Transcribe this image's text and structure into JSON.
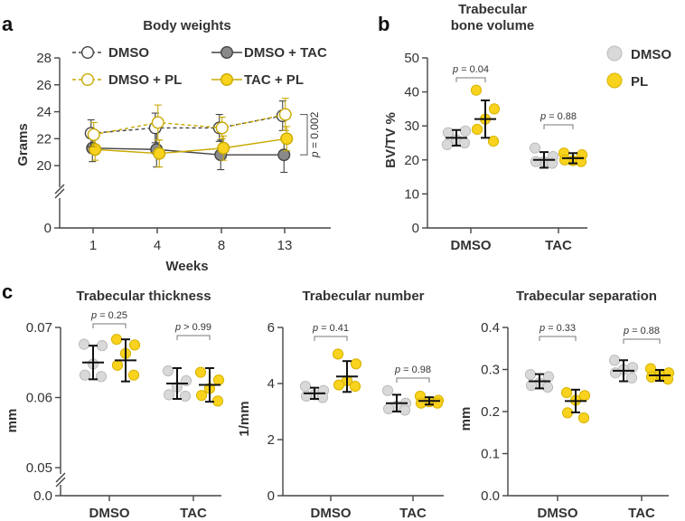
{
  "panels": {
    "a": "a",
    "b": "b",
    "c": "c"
  },
  "colors": {
    "dmso": "#d9d9d9",
    "pl": "#f8d21c",
    "tac_line": "#333333",
    "tac_pl": "#c9a900",
    "axis": "#444444"
  },
  "chart_data": [
    {
      "id": "body_weights",
      "type": "line",
      "title": "Body weights",
      "xlabel": "Weeks",
      "ylabel": "Grams",
      "categories": [
        "1",
        "4",
        "8",
        "13"
      ],
      "yticks": [
        "20",
        "22",
        "24",
        "26",
        "28"
      ],
      "ybreak_label": "0",
      "ylim": [
        19,
        28
      ],
      "series": [
        {
          "name": "DMSO",
          "values": [
            22.4,
            22.8,
            22.8,
            23.7
          ],
          "err": [
            1.0,
            1.1,
            1.0,
            1.1
          ],
          "style": "dashed",
          "marker": "open"
        },
        {
          "name": "DMSO + TAC",
          "values": [
            21.3,
            21.2,
            20.8,
            20.8
          ],
          "err": [
            1.0,
            1.3,
            1.1,
            1.3
          ],
          "style": "solid",
          "marker": "gray"
        },
        {
          "name": "DMSO + PL",
          "values": [
            22.3,
            23.2,
            22.8,
            23.8
          ],
          "err": [
            0.9,
            1.3,
            0.8,
            1.2
          ],
          "style": "dashed",
          "marker": "goldopen"
        },
        {
          "name": "TAC + PL",
          "values": [
            21.2,
            20.9,
            21.3,
            22.0
          ],
          "err": [
            0.8,
            1.0,
            0.9,
            0.9
          ],
          "style": "solid",
          "marker": "gold"
        }
      ],
      "annotation": "p = 0.002"
    },
    {
      "id": "bv_tv",
      "type": "scatter",
      "title_lines": [
        "Trabecular",
        "bone volume"
      ],
      "ylabel": "BV/TV %",
      "ylim": [
        0,
        50
      ],
      "yticks": [
        "0",
        "10",
        "20",
        "30",
        "40",
        "50"
      ],
      "categories": [
        "DMSO",
        "TAC"
      ],
      "legend": [
        "DMSO",
        "PL"
      ],
      "groups": [
        {
          "cat": "DMSO",
          "treat": "DMSO",
          "mean": 26.5,
          "sd": 2.3,
          "points": [
            24.5,
            28.5,
            26.0,
            28.0,
            25.0
          ]
        },
        {
          "cat": "DMSO",
          "treat": "PL",
          "mean": 32.0,
          "sd": 5.5,
          "points": [
            40.5,
            35.0,
            32.0,
            29.0,
            25.5
          ]
        },
        {
          "cat": "TAC",
          "treat": "DMSO",
          "mean": 20.0,
          "sd": 2.3,
          "points": [
            23.5,
            21.0,
            19.5,
            19.5,
            19.0
          ]
        },
        {
          "cat": "TAC",
          "treat": "PL",
          "mean": 20.5,
          "sd": 1.5,
          "points": [
            22.0,
            21.5,
            19.8,
            20.0,
            19.5
          ]
        }
      ],
      "pvalues": [
        {
          "label": "p = 0.04",
          "between": "DMSO"
        },
        {
          "label": "p = 0.88",
          "between": "TAC"
        }
      ]
    },
    {
      "id": "tb_th",
      "type": "scatter",
      "title": "Trabecular thickness",
      "ylabel": "mm",
      "ylim": [
        0.05,
        0.07
      ],
      "yticks": [
        "0.05",
        "0.06",
        "0.07"
      ],
      "ybreak_label": "0.0",
      "categories": [
        "DMSO",
        "TAC"
      ],
      "groups": [
        {
          "cat": "DMSO",
          "treat": "DMSO",
          "mean": 0.065,
          "sd": 0.0024,
          "points": [
            0.0676,
            0.0674,
            0.0648,
            0.0632,
            0.063
          ]
        },
        {
          "cat": "DMSO",
          "treat": "PL",
          "mean": 0.0653,
          "sd": 0.003,
          "points": [
            0.0683,
            0.0675,
            0.0663,
            0.0646,
            0.0632
          ]
        },
        {
          "cat": "TAC",
          "treat": "DMSO",
          "mean": 0.062,
          "sd": 0.0022,
          "points": [
            0.0638,
            0.0624,
            0.0615,
            0.0604,
            0.0602
          ]
        },
        {
          "cat": "TAC",
          "treat": "PL",
          "mean": 0.0618,
          "sd": 0.0024,
          "points": [
            0.0636,
            0.0625,
            0.0613,
            0.0603,
            0.0595
          ]
        }
      ],
      "pvalues": [
        {
          "label": "p = 0.25",
          "between": "DMSO"
        },
        {
          "label": "p > 0.99",
          "between": "TAC"
        }
      ]
    },
    {
      "id": "tb_n",
      "type": "scatter",
      "title": "Trabecular number",
      "ylabel": "1/mm",
      "ylim": [
        0,
        6
      ],
      "yticks": [
        "0",
        "2",
        "4",
        "6"
      ],
      "categories": [
        "DMSO",
        "TAC"
      ],
      "groups": [
        {
          "cat": "DMSO",
          "treat": "DMSO",
          "mean": 3.65,
          "sd": 0.2,
          "points": [
            3.9,
            3.75,
            3.6,
            3.55,
            3.5
          ]
        },
        {
          "cat": "DMSO",
          "treat": "PL",
          "mean": 4.25,
          "sd": 0.55,
          "points": [
            5.05,
            4.7,
            4.1,
            3.95,
            3.9
          ]
        },
        {
          "cat": "TAC",
          "treat": "DMSO",
          "mean": 3.3,
          "sd": 0.3,
          "points": [
            3.75,
            3.3,
            3.2,
            3.1,
            3.05
          ]
        },
        {
          "cat": "TAC",
          "treat": "PL",
          "mean": 3.38,
          "sd": 0.13,
          "points": [
            3.55,
            3.4,
            3.35,
            3.3,
            3.3
          ]
        }
      ],
      "pvalues": [
        {
          "label": "p = 0.41",
          "between": "DMSO"
        },
        {
          "label": "p = 0.98",
          "between": "TAC"
        }
      ]
    },
    {
      "id": "tb_sp",
      "type": "scatter",
      "title": "Trabecular separation",
      "ylabel": "mm",
      "ylim": [
        0,
        0.4
      ],
      "yticks": [
        "0.0",
        "0.1",
        "0.2",
        "0.3",
        "0.4"
      ],
      "categories": [
        "DMSO",
        "TAC"
      ],
      "groups": [
        {
          "cat": "DMSO",
          "treat": "DMSO",
          "mean": 0.272,
          "sd": 0.017,
          "points": [
            0.288,
            0.283,
            0.268,
            0.262,
            0.258
          ]
        },
        {
          "cat": "DMSO",
          "treat": "PL",
          "mean": 0.225,
          "sd": 0.027,
          "points": [
            0.245,
            0.238,
            0.227,
            0.197,
            0.185
          ]
        },
        {
          "cat": "TAC",
          "treat": "DMSO",
          "mean": 0.297,
          "sd": 0.025,
          "points": [
            0.322,
            0.305,
            0.3,
            0.292,
            0.28
          ]
        },
        {
          "cat": "TAC",
          "treat": "PL",
          "mean": 0.286,
          "sd": 0.013,
          "points": [
            0.302,
            0.292,
            0.287,
            0.282,
            0.277
          ]
        }
      ],
      "pvalues": [
        {
          "label": "p = 0.33",
          "between": "DMSO"
        },
        {
          "label": "p = 0.88",
          "between": "TAC"
        }
      ]
    }
  ]
}
